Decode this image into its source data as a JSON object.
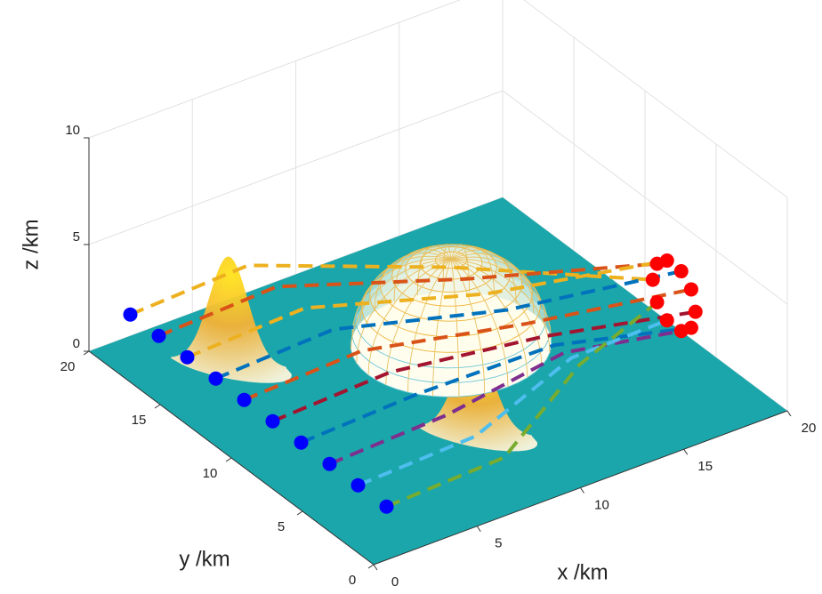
{
  "chart_data": {
    "type": "line3d",
    "xlabel": "x  /km",
    "ylabel": "y  /km",
    "zlabel": "z  /km",
    "xlim": [
      0,
      20
    ],
    "ylim": [
      0,
      20
    ],
    "zlim": [
      0,
      10
    ],
    "xticks": [
      0,
      5,
      10,
      15,
      20
    ],
    "yticks": [
      0,
      5,
      10,
      15,
      20
    ],
    "zticks": [
      0,
      5,
      10
    ],
    "grid": true,
    "floor_color": "#1aa6aa",
    "start_points": {
      "color": "#0000ff",
      "x": [
        2,
        2,
        2,
        2,
        2,
        2,
        2,
        2,
        2,
        2
      ],
      "y": [
        20,
        18,
        16,
        14,
        12,
        10,
        8,
        6,
        4,
        2
      ],
      "z": [
        1,
        1,
        1,
        1,
        1,
        1,
        1,
        1,
        1,
        1
      ]
    },
    "end_points": {
      "color": "#ff0000",
      "x": [
        19,
        19,
        19,
        19,
        19,
        19,
        19,
        19,
        19,
        19
      ],
      "y": [
        8,
        7.7,
        7,
        6,
        5.3,
        5,
        5.3,
        6,
        7,
        7.7
      ],
      "z": [
        2.5,
        3.4,
        3.9,
        3.9,
        3.4,
        2.5,
        1.6,
        1.1,
        1.1,
        1.6
      ]
    },
    "series": [
      {
        "color": "#edb120",
        "x": [
          2,
          7,
          13,
          19
        ],
        "y": [
          20,
          19,
          13.5,
          8
        ],
        "z": [
          1,
          2,
          2.5,
          2.5
        ]
      },
      {
        "color": "#d95319",
        "x": [
          2,
          7,
          13,
          19
        ],
        "y": [
          18,
          17,
          12.4,
          7.7
        ],
        "z": [
          1,
          2,
          2.5,
          3.4
        ]
      },
      {
        "color": "#edb120",
        "x": [
          2,
          7,
          13,
          19
        ],
        "y": [
          16,
          15,
          11,
          7
        ],
        "z": [
          1,
          2,
          2.5,
          3.9
        ]
      },
      {
        "color": "#0072bd",
        "x": [
          2,
          7,
          13,
          19
        ],
        "y": [
          14,
          13,
          9.5,
          6
        ],
        "z": [
          1,
          2,
          2.5,
          3.9
        ]
      },
      {
        "color": "#d95319",
        "x": [
          2,
          7,
          13,
          19
        ],
        "y": [
          12,
          11,
          8.2,
          5.3
        ],
        "z": [
          1,
          2,
          2.5,
          3.4
        ]
      },
      {
        "color": "#a2142f",
        "x": [
          2,
          7,
          13,
          19
        ],
        "y": [
          10,
          9,
          7,
          5
        ],
        "z": [
          1,
          2,
          2.5,
          2.5
        ]
      },
      {
        "color": "#0072bd",
        "x": [
          2,
          7,
          13,
          19
        ],
        "y": [
          8,
          7,
          6.2,
          5.3
        ],
        "z": [
          1,
          2,
          2.5,
          1.6
        ]
      },
      {
        "color": "#7e2f8e",
        "x": [
          2,
          7,
          13,
          19
        ],
        "y": [
          6,
          5,
          5.5,
          6
        ],
        "z": [
          1,
          2,
          2.5,
          1.1
        ]
      },
      {
        "color": "#4dbeee",
        "x": [
          2,
          7,
          13,
          19
        ],
        "y": [
          4,
          3,
          5,
          7
        ],
        "z": [
          1,
          2,
          2.5,
          1.1
        ]
      },
      {
        "color": "#77ac30",
        "x": [
          2,
          7,
          13,
          19
        ],
        "y": [
          2,
          1,
          4.4,
          7.7
        ],
        "z": [
          1,
          2,
          2.5,
          1.6
        ]
      }
    ],
    "peaks": [
      {
        "x": 4,
        "y": 16,
        "height": 5,
        "radius": 3
      },
      {
        "x": 9,
        "y": 6,
        "height": 4,
        "radius": 3
      }
    ],
    "hemisphere": {
      "x": 12,
      "y": 12,
      "z": 0,
      "radius": 4
    }
  }
}
